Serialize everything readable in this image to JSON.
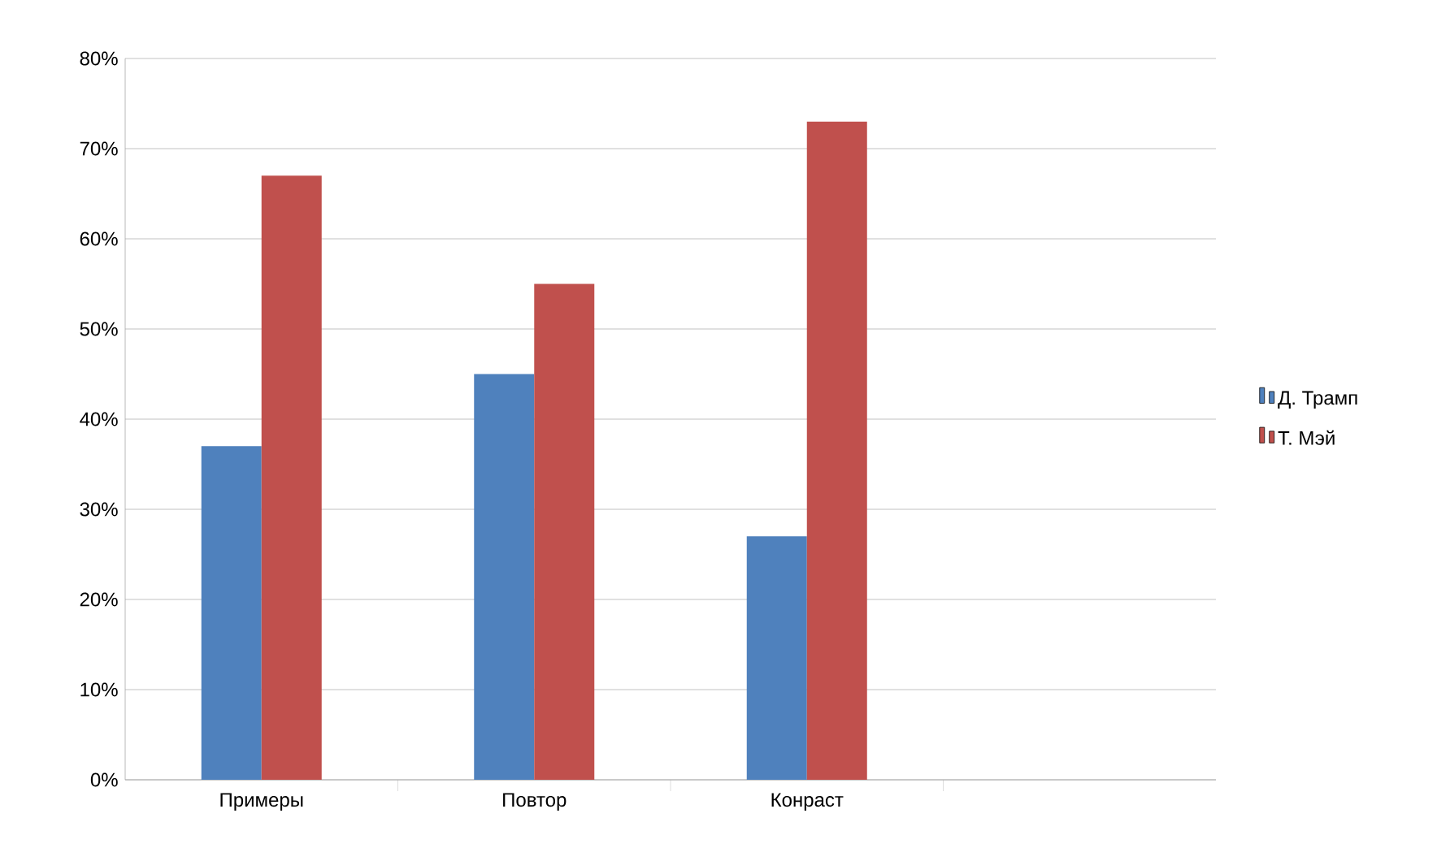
{
  "chart_data": {
    "type": "bar",
    "categories": [
      "Примеры",
      "Повтор",
      "Конраст",
      null
    ],
    "series": [
      {
        "name": "Д. Трамп",
        "color": "#4f81bd",
        "values": [
          37,
          45,
          27,
          null
        ]
      },
      {
        "name": "Т. Мэй",
        "color": "#c0504d",
        "values": [
          67,
          55,
          73,
          null
        ]
      }
    ],
    "ylim": [
      0,
      80
    ],
    "yticks": [
      {
        "value": 0,
        "label": "0%"
      },
      {
        "value": 10,
        "label": "10%"
      },
      {
        "value": 20,
        "label": "20%"
      },
      {
        "value": 30,
        "label": "30%"
      },
      {
        "value": 40,
        "label": "40%"
      },
      {
        "value": 50,
        "label": "50%"
      },
      {
        "value": 60,
        "label": "60%"
      },
      {
        "value": 70,
        "label": "70%"
      },
      {
        "value": 80,
        "label": "80%"
      }
    ],
    "grid": "y",
    "legend": "right"
  }
}
